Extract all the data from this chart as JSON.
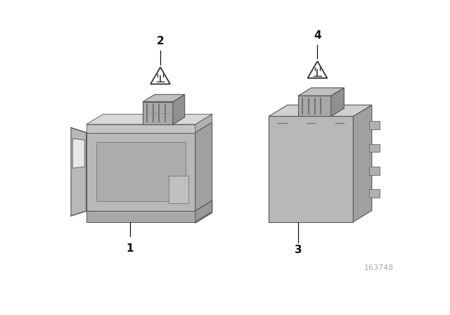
{
  "background_color": "#ffffff",
  "part_number": "163748",
  "part_number_color": "#aaaaaa",
  "part_number_fontsize": 8,
  "line_color": "#111111",
  "text_color": "#111111",
  "callout_fontsize": 11,
  "triangle_color": "#333333",
  "gray_front": "#b8b8b8",
  "gray_side": "#a0a0a0",
  "gray_top": "#d0d0d0",
  "gray_dark": "#909090",
  "gray_edge": "#555555"
}
